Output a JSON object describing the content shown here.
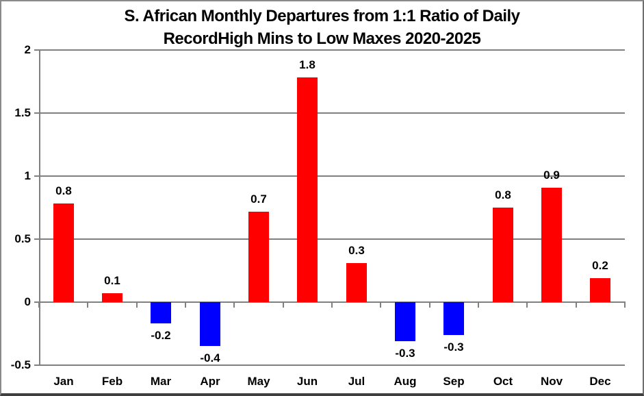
{
  "title": {
    "line1": "S. African Monthly Departures from 1:1 Ratio of Daily",
    "line2": "RecordHigh Mins to Low Maxes 2020-2025"
  },
  "chart_data": {
    "type": "bar",
    "title": "S. African Monthly Departures from 1:1 Ratio of Daily RecordHigh Mins to Low Maxes 2020-2025",
    "categories": [
      "Jan",
      "Feb",
      "Mar",
      "Apr",
      "May",
      "Jun",
      "Jul",
      "Aug",
      "Sep",
      "Oct",
      "Nov",
      "Dec"
    ],
    "values": [
      0.8,
      0.1,
      -0.2,
      -0.4,
      0.7,
      1.8,
      0.3,
      -0.3,
      -0.3,
      0.8,
      0.9,
      0.2
    ],
    "data_labels": [
      "0.8",
      "0.1",
      "-0.2",
      "-0.4",
      "0.7",
      "1.8",
      "0.3",
      "-0.3",
      "-0.3",
      "0.8",
      "0.9",
      "0.2"
    ],
    "bar_values_rendered": [
      0.78,
      0.07,
      -0.17,
      -0.35,
      0.72,
      1.78,
      0.31,
      -0.31,
      -0.26,
      0.75,
      0.91,
      0.19
    ],
    "xlabel": "",
    "ylabel": "",
    "ylim": [
      -0.5,
      2
    ],
    "ytick_interval": 0.5,
    "ytick_labels": [
      "2",
      "1.5",
      "1",
      "0.5",
      "0",
      "-0.5"
    ],
    "grid": true,
    "legend_position": "none",
    "positive_color": "#ff0000",
    "negative_color": "#0000ff",
    "gridline_color": "#808080",
    "label_color": "#000000"
  }
}
